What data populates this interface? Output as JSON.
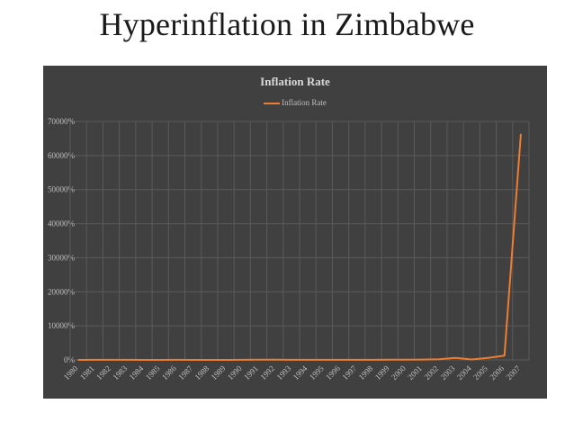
{
  "slide": {
    "title": "Hyperinflation in Zimbabwe"
  },
  "colors": {
    "panel_bg": "#404040",
    "series": "#ed7d31",
    "grid": "#5a5a5a",
    "text": "#bfbfbf"
  },
  "chart_data": {
    "type": "line",
    "title": "Inflation Rate",
    "xlabel": "",
    "ylabel": "",
    "legend": "top",
    "grid": true,
    "ylim": [
      0,
      70000
    ],
    "y_ticks": [
      0,
      10000,
      20000,
      30000,
      40000,
      50000,
      60000,
      70000
    ],
    "y_tick_labels": [
      "0%",
      "10000%",
      "20000%",
      "30000%",
      "40000%",
      "50000%",
      "60000%",
      "70000%"
    ],
    "categories": [
      "1980",
      "1981",
      "1982",
      "1983",
      "1984",
      "1985",
      "1986",
      "1987",
      "1988",
      "1989",
      "1990",
      "1991",
      "1992",
      "1993",
      "1994",
      "1995",
      "1996",
      "1997",
      "1998",
      "1999",
      "2000",
      "2001",
      "2002",
      "2003",
      "2004",
      "2005",
      "2006",
      "2007"
    ],
    "series": [
      {
        "name": "Inflation Rate",
        "values": [
          7,
          14,
          15,
          19,
          10,
          8,
          14,
          12,
          7,
          13,
          17,
          48,
          42,
          27,
          22,
          22,
          21,
          19,
          32,
          59,
          55,
          112,
          199,
          599,
          133,
          586,
          1281,
          66212
        ]
      }
    ]
  }
}
